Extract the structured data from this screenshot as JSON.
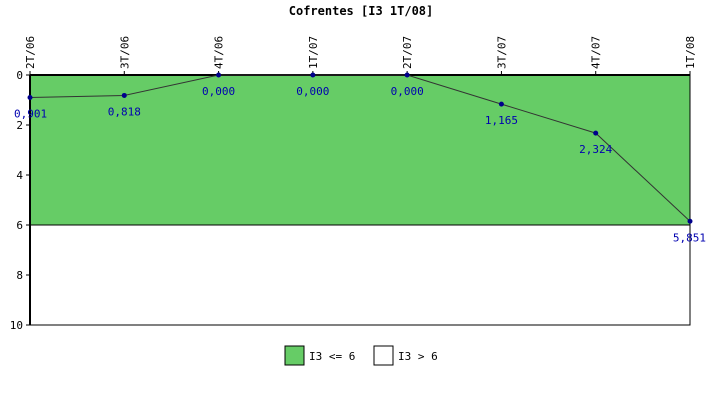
{
  "chart_data": {
    "type": "line",
    "title": "Cofrentes [I3 1T/08]",
    "categories": [
      "2T/06",
      "3T/06",
      "4T/06",
      "1T/07",
      "2T/07",
      "3T/07",
      "4T/07",
      "1T/08"
    ],
    "values": [
      0.901,
      0.818,
      0.0,
      0.0,
      0.0,
      1.165,
      2.324,
      5.851
    ],
    "data_labels": [
      "0,901",
      "0,818",
      "0,000",
      "0,000",
      "0,000",
      "1,165",
      "2,324",
      "5,851"
    ],
    "ylim": [
      10,
      0
    ],
    "yticks": [
      0,
      2,
      4,
      6,
      8,
      10
    ],
    "y_inverted": true,
    "threshold": 6,
    "bands": [
      {
        "name": "I3 <= 6",
        "from": 0,
        "to": 6,
        "color": "#66cc66"
      },
      {
        "name": "I3 > 6",
        "from": 6,
        "to": 10,
        "color": "#ffffff"
      }
    ],
    "line_color": "#333333",
    "marker_color": "#00008b",
    "label_color": "#0000b0",
    "grid": false,
    "legend_position": "bottom"
  }
}
